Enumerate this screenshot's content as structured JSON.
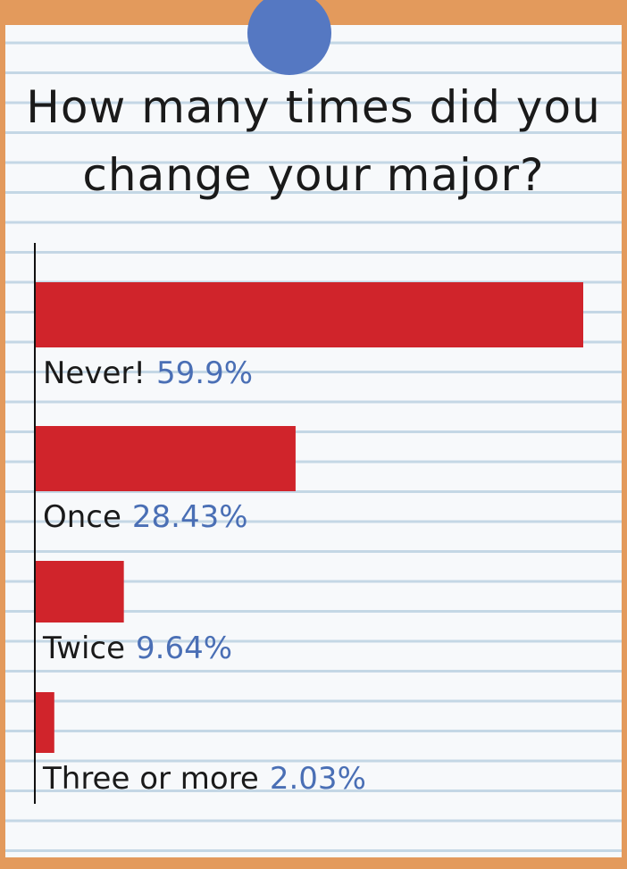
{
  "chart_data": {
    "type": "hbar",
    "title": "How many times did you change your major?",
    "categories": [
      "Never!",
      "Once",
      "Twice",
      "Three or more"
    ],
    "values": [
      59.9,
      28.43,
      9.64,
      2.03
    ],
    "value_labels": [
      "59.9%",
      "28.43%",
      "9.64%",
      "2.03%"
    ],
    "color": "#d0242b",
    "label_color": "#4a6fb5"
  }
}
